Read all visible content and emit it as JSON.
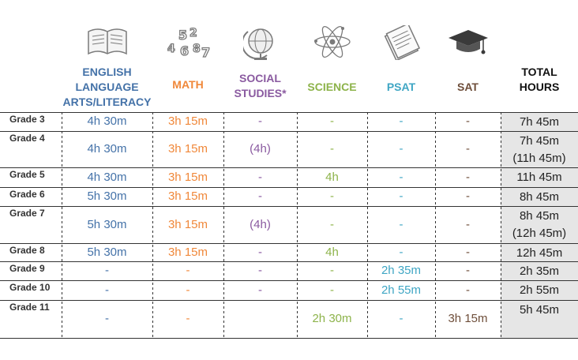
{
  "columns": [
    {
      "key": "ela",
      "label_lines": [
        "ENGLISH",
        "LANGUAGE",
        "ARTS/LITERACY"
      ],
      "icon": "open-book-icon",
      "color": "#4472a8"
    },
    {
      "key": "math",
      "label_lines": [
        "MATH"
      ],
      "icon": "numbers-icon",
      "color": "#f0883a"
    },
    {
      "key": "social",
      "label_lines": [
        "SOCIAL",
        "STUDIES*"
      ],
      "icon": "globe-icon",
      "color": "#8a5aa0"
    },
    {
      "key": "science",
      "label_lines": [
        "SCIENCE"
      ],
      "icon": "atom-icon",
      "color": "#8db34a"
    },
    {
      "key": "psat",
      "label_lines": [
        "PSAT"
      ],
      "icon": "test-booklet-icon",
      "color": "#3fa6c4"
    },
    {
      "key": "sat",
      "label_lines": [
        "SAT"
      ],
      "icon": "graduation-cap-icon",
      "color": "#6e4e3a"
    },
    {
      "key": "total",
      "label_lines": [
        "TOTAL",
        "HOURS"
      ],
      "icon": "",
      "color": "#111111"
    }
  ],
  "rows": [
    {
      "grade": "Grade 3",
      "ela": "4h 30m",
      "math": "3h 15m",
      "social": "-",
      "science": "-",
      "psat": "-",
      "sat": "-",
      "total": [
        "7h 45m"
      ]
    },
    {
      "grade": "Grade 4",
      "ela": "4h 30m",
      "math": "3h 15m",
      "social": "(4h)",
      "science": "-",
      "psat": "-",
      "sat": "-",
      "total": [
        "7h 45m",
        "(11h 45m)"
      ]
    },
    {
      "grade": "Grade 5",
      "ela": "4h 30m",
      "math": "3h 15m",
      "social": "-",
      "science": "4h",
      "psat": "-",
      "sat": "-",
      "total": [
        "11h 45m"
      ]
    },
    {
      "grade": "Grade 6",
      "ela": "5h 30m",
      "math": "3h 15m",
      "social": "-",
      "science": "-",
      "psat": "-",
      "sat": "-",
      "total": [
        "8h 45m"
      ]
    },
    {
      "grade": "Grade 7",
      "ela": "5h 30m",
      "math": "3h 15m",
      "social": "(4h)",
      "science": "-",
      "psat": "-",
      "sat": "-",
      "total": [
        "8h 45m",
        "(12h 45m)"
      ]
    },
    {
      "grade": "Grade 8",
      "ela": "5h 30m",
      "math": "3h 15m",
      "social": "-",
      "science": "4h",
      "psat": "-",
      "sat": "-",
      "total": [
        "12h 45m"
      ]
    },
    {
      "grade": "Grade 9",
      "ela": "-",
      "math": "-",
      "social": "-",
      "science": "-",
      "psat": "2h 35m",
      "sat": "-",
      "total": [
        "2h 35m"
      ]
    },
    {
      "grade": "Grade 10",
      "ela": "-",
      "math": "-",
      "social": "-",
      "science": "-",
      "psat": "2h 55m",
      "sat": "-",
      "total": [
        "2h 55m"
      ]
    },
    {
      "grade": "Grade 11",
      "ela": "-",
      "math": "-",
      "social": "",
      "science": "2h 30m",
      "psat": "-",
      "sat": "3h 15m",
      "total": [
        "5h 45m"
      ]
    }
  ]
}
